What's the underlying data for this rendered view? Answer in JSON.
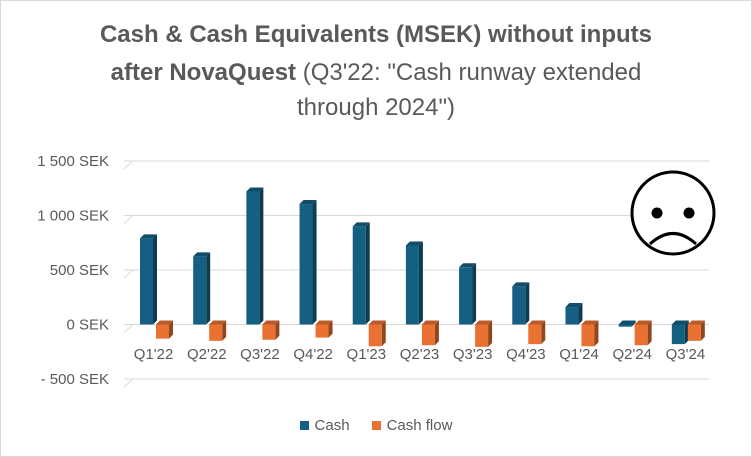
{
  "chart_data": {
    "type": "bar",
    "title_lines": [
      {
        "bold": "Cash & Cash Equivalents (MSEK) without inputs",
        "normal": ""
      },
      {
        "bold": "after NovaQuest",
        "normal": " (Q3'22: \"Cash runway extended"
      },
      {
        "bold": "",
        "normal": "through 2024\")"
      }
    ],
    "categories": [
      "Q1'22",
      "Q2'22",
      "Q3'22",
      "Q4'22",
      "Q1'23",
      "Q2'23",
      "Q3'23",
      "Q4'23",
      "Q1'24",
      "Q2'24",
      "Q3'24"
    ],
    "series": [
      {
        "name": "Cash",
        "color": "#156082",
        "values": [
          790,
          625,
          1220,
          1105,
          900,
          725,
          525,
          350,
          160,
          -20,
          -180
        ]
      },
      {
        "name": "Cash flow",
        "color": "#E97132",
        "values": [
          -130,
          -150,
          -140,
          -120,
          -200,
          -190,
          -205,
          -180,
          -200,
          -190,
          -150
        ]
      }
    ],
    "y_ticks": [
      1500,
      1000,
      500,
      0,
      -500
    ],
    "y_tick_labels": [
      "1 500 SEK",
      "1 000 SEK",
      "500 SEK",
      "0 SEK",
      "- 500 SEK"
    ],
    "ylim": [
      -500,
      1500
    ],
    "grid": true,
    "legend_position": "bottom",
    "annotation_icon": "sad-face-icon"
  }
}
